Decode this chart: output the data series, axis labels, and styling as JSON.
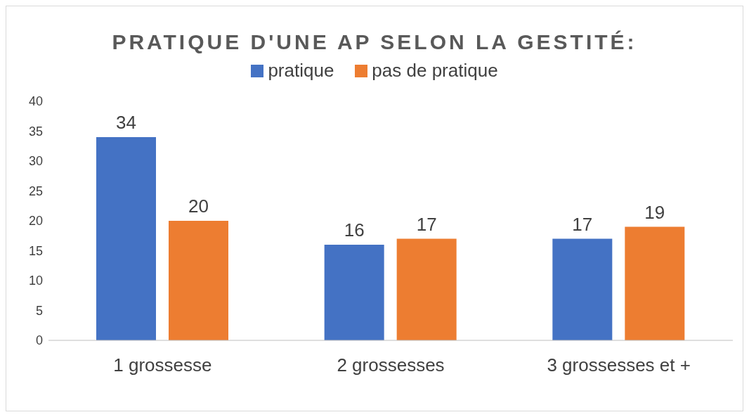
{
  "chart_data": {
    "type": "bar",
    "title": "PRATIQUE D'UNE AP SELON LA GESTITÉ:",
    "categories": [
      "1 grossesse",
      "2 grossesses",
      "3 grossesses et +"
    ],
    "series": [
      {
        "name": "pratique",
        "color": "#4472c4",
        "values": [
          34,
          16,
          17
        ]
      },
      {
        "name": "pas de pratique",
        "color": "#ed7d31",
        "values": [
          20,
          17,
          19
        ]
      }
    ],
    "ylim": [
      0,
      40
    ],
    "yticks": [
      0,
      5,
      10,
      15,
      20,
      25,
      30,
      35,
      40
    ],
    "grid": false,
    "legend": "top",
    "data_labels": true
  }
}
